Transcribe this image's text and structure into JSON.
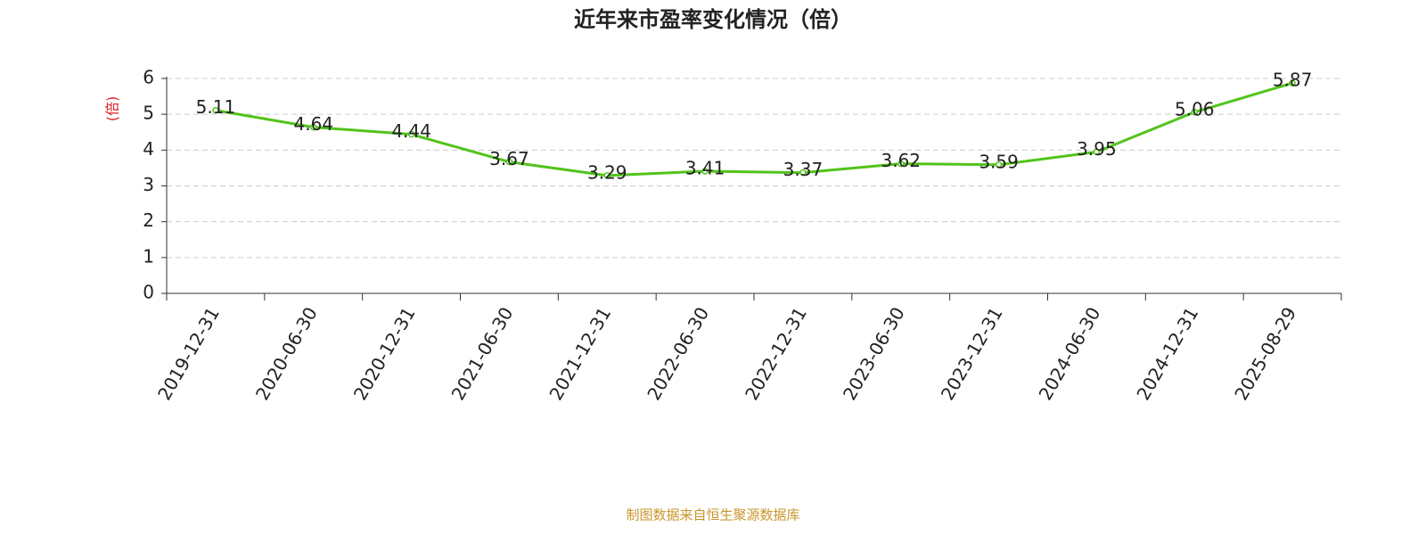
{
  "chart_data": {
    "type": "line",
    "title": "近年来市盈率变化情况（倍）",
    "y_label": "(倍)",
    "source": "制图数据来自恒生聚源数据库",
    "categories": [
      "2019-12-31",
      "2020-06-30",
      "2020-12-31",
      "2021-06-30",
      "2021-12-31",
      "2022-06-30",
      "2022-12-31",
      "2023-06-30",
      "2023-12-31",
      "2024-06-30",
      "2024-12-31",
      "2025-08-29"
    ],
    "values": [
      5.11,
      4.64,
      4.44,
      3.67,
      3.29,
      3.41,
      3.37,
      3.62,
      3.59,
      3.95,
      5.06,
      5.87
    ],
    "color": "#52c41a",
    "ylim": [
      0,
      6
    ],
    "yticks": [
      0,
      1,
      2,
      3,
      4,
      5,
      6
    ],
    "grid": true
  }
}
